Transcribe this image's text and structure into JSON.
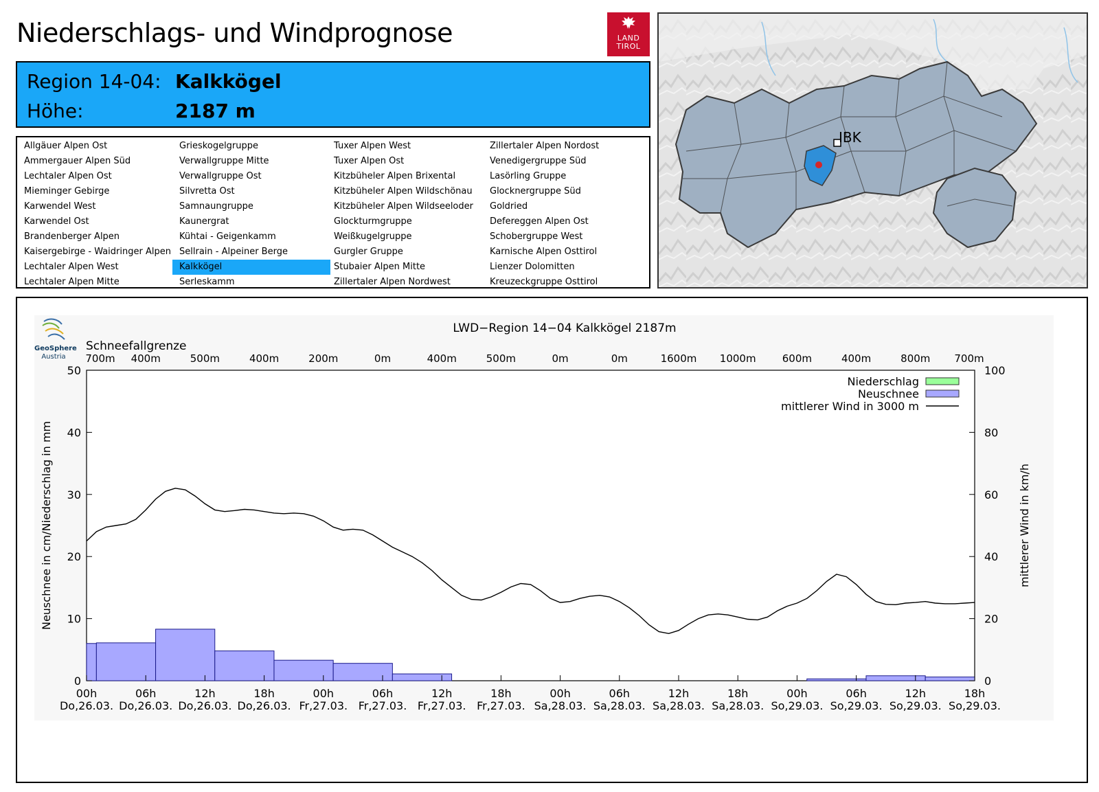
{
  "header": {
    "title": "Niederschlags- und Windprognose",
    "logo": {
      "line1": "LAND",
      "line2": "TIROL",
      "color": "#c8102e"
    }
  },
  "region": {
    "id_label": "Region 14-04:",
    "name": "Kalkkögel",
    "height_label": "Höhe:",
    "height_value": "2187 m",
    "box_color": "#1aa7f8"
  },
  "regions_list": {
    "columns": [
      [
        "Allgäuer Alpen Ost",
        "Ammergauer Alpen Süd",
        "Lechtaler Alpen Ost",
        "Mieminger Gebirge",
        "Karwendel West",
        "Karwendel Ost",
        "Brandenberger Alpen",
        "Kaisergebirge - Waidringer Alpen",
        "Lechtaler Alpen West",
        "Lechtaler Alpen Mitte"
      ],
      [
        "Grieskogelgruppe",
        "Verwallgruppe Mitte",
        "Verwallgruppe Ost",
        "Silvretta Ost",
        "Samnaungruppe",
        "Kaunergrat",
        "Kühtai - Geigenkamm",
        "Sellrain - Alpeiner Berge",
        "Kalkkögel",
        "Serleskamm"
      ],
      [
        "Tuxer Alpen West",
        "Tuxer Alpen Ost",
        "Kitzbüheler Alpen Brixental",
        "Kitzbüheler Alpen Wildschönau",
        "Kitzbüheler Alpen Wildseeloder",
        "Glockturmgruppe",
        "Weißkugelgruppe",
        "Gurgler Gruppe",
        "Stubaier Alpen Mitte",
        "Zillertaler Alpen Nordwest"
      ],
      [
        "Zillertaler Alpen Nordost",
        "Venedigergruppe Süd",
        "Lasörling Gruppe",
        "Glocknergruppe Süd",
        "Goldried",
        "Defereggen Alpen Ost",
        "Schobergruppe West",
        "Karnische Alpen Osttirol",
        "Lienzer Dolomitten",
        "Kreuzeckgruppe Osttirol"
      ]
    ],
    "selected": "Kalkkögel"
  },
  "map": {
    "city_label": "IBK",
    "marker_color": "#d62728",
    "highlight_color": "#2f8fd8"
  },
  "geosphere": {
    "name": "GeoSphere",
    "sub": "Austria"
  },
  "chart_data": {
    "type": "bar+line",
    "title": "LWD−Region 14−04 Kalkkögel 2187m",
    "snowline_title": "Schneefallgrenze",
    "snowline_labels": [
      "700m",
      "400m",
      "500m",
      "400m",
      "200m",
      "0m",
      "400m",
      "500m",
      "0m",
      "0m",
      "1600m",
      "1000m",
      "600m",
      "400m",
      "800m",
      "700m"
    ],
    "ylabel_left": "Neuschnee in cm/Niederschlag in mm",
    "ylabel_right": "mittlerer Wind in km/h",
    "ylim_left": [
      0,
      50
    ],
    "ylim_right": [
      0,
      100
    ],
    "yticks_left": [
      "0",
      "10",
      "20",
      "30",
      "40",
      "50"
    ],
    "yticks_right": [
      "0",
      "20",
      "40",
      "60",
      "80",
      "100"
    ],
    "x_hours": [
      0,
      90
    ],
    "xtick_labels": [
      {
        "hour": "00h",
        "date": "Do,26.03."
      },
      {
        "hour": "06h",
        "date": "Do,26.03."
      },
      {
        "hour": "12h",
        "date": "Do,26.03."
      },
      {
        "hour": "18h",
        "date": "Do,26.03."
      },
      {
        "hour": "00h",
        "date": "Fr,27.03."
      },
      {
        "hour": "06h",
        "date": "Fr,27.03."
      },
      {
        "hour": "12h",
        "date": "Fr,27.03."
      },
      {
        "hour": "18h",
        "date": "Fr,27.03."
      },
      {
        "hour": "00h",
        "date": "Sa,28.03."
      },
      {
        "hour": "06h",
        "date": "Sa,28.03."
      },
      {
        "hour": "12h",
        "date": "Sa,28.03."
      },
      {
        "hour": "18h",
        "date": "Sa,28.03."
      },
      {
        "hour": "00h",
        "date": "So,29.03."
      },
      {
        "hour": "06h",
        "date": "So,29.03."
      },
      {
        "hour": "12h",
        "date": "So,29.03."
      },
      {
        "hour": "18h",
        "date": "So,29.03."
      }
    ],
    "legend": [
      {
        "label": "Niederschlag",
        "type": "box",
        "color": "#9aff9a"
      },
      {
        "label": "Neuschnee",
        "type": "box",
        "color": "#a8a8ff"
      },
      {
        "label": "mittlerer Wind in 3000 m",
        "type": "line",
        "color": "#000000"
      }
    ],
    "series": [
      {
        "name": "Neuschnee",
        "unit": "cm",
        "bars": [
          {
            "start": 0,
            "end": 1,
            "value": 6.0
          },
          {
            "start": 1,
            "end": 7,
            "value": 6.1
          },
          {
            "start": 7,
            "end": 13,
            "value": 8.3
          },
          {
            "start": 13,
            "end": 19,
            "value": 4.8
          },
          {
            "start": 19,
            "end": 25,
            "value": 3.3
          },
          {
            "start": 25,
            "end": 31,
            "value": 2.8
          },
          {
            "start": 31,
            "end": 37,
            "value": 1.1
          },
          {
            "start": 37,
            "end": 43,
            "value": 0
          },
          {
            "start": 43,
            "end": 49,
            "value": 0
          },
          {
            "start": 49,
            "end": 55,
            "value": 0
          },
          {
            "start": 55,
            "end": 61,
            "value": 0
          },
          {
            "start": 61,
            "end": 67,
            "value": 0
          },
          {
            "start": 67,
            "end": 73,
            "value": 0
          },
          {
            "start": 73,
            "end": 79,
            "value": 0.3
          },
          {
            "start": 79,
            "end": 85,
            "value": 0.8
          },
          {
            "start": 85,
            "end": 90,
            "value": 0.6
          }
        ]
      },
      {
        "name": "Niederschlag",
        "unit": "mm",
        "bars": []
      },
      {
        "name": "mittlerer Wind in 3000 m",
        "unit": "km/h",
        "x": [
          0,
          1,
          2,
          3,
          4,
          5,
          6,
          7,
          8,
          9,
          10,
          11,
          12,
          13,
          14,
          15,
          16,
          17,
          18,
          19,
          20,
          21,
          22,
          23,
          24,
          25,
          26,
          27,
          28,
          29,
          30,
          31,
          32,
          33,
          34,
          35,
          36,
          37,
          38,
          39,
          40,
          41,
          42,
          43,
          44,
          45,
          46,
          47,
          48,
          49,
          50,
          51,
          52,
          53,
          54,
          55,
          56,
          57,
          58,
          59,
          60,
          61,
          62,
          63,
          64,
          65,
          66,
          67,
          68,
          69,
          70,
          71,
          72,
          73,
          74,
          75,
          76,
          77,
          78,
          79,
          80,
          81,
          82,
          83,
          84,
          85,
          86,
          87,
          88,
          89,
          90
        ],
        "y": [
          45,
          48,
          49.5,
          50,
          50.5,
          52,
          55,
          58.5,
          61,
          62,
          61.5,
          59.5,
          57,
          55,
          54.5,
          54.8,
          55.2,
          55,
          54.5,
          54,
          53.8,
          54,
          53.8,
          53,
          51.5,
          49.5,
          48.5,
          48.8,
          48.5,
          47,
          45,
          43,
          41.5,
          40,
          38,
          35.5,
          32.5,
          30,
          27.5,
          26.2,
          26,
          27,
          28.5,
          30.2,
          31.3,
          31,
          29,
          26.5,
          25.2,
          25.5,
          26.5,
          27.2,
          27.5,
          27,
          25.5,
          23.5,
          21,
          18,
          15.8,
          15.2,
          16.2,
          18.2,
          20,
          21.2,
          21.5,
          21.2,
          20.5,
          19.8,
          19.6,
          20.5,
          22.5,
          24,
          25,
          26.5,
          29,
          32,
          34.3,
          33.5,
          31,
          27.8,
          25.5,
          24.6,
          24.5,
          25,
          25.2,
          25.5,
          25,
          24.8,
          24.8,
          25,
          25.2
        ]
      }
    ]
  }
}
